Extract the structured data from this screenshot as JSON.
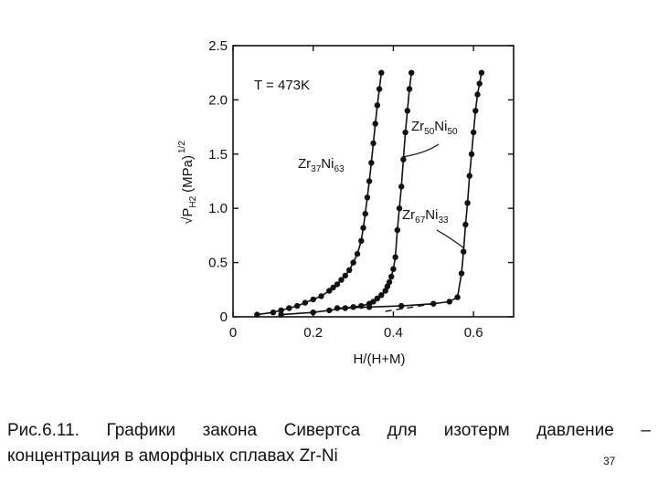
{
  "chart_data": {
    "type": "line",
    "xlabel": "H/(H+M)",
    "ylabel": "√P",
    "ylabel_sub": "H2",
    "ylabel_units": "(MPa)",
    "ylabel_exp": "1/2",
    "xlim": [
      0,
      0.7
    ],
    "ylim": [
      0,
      2.5
    ],
    "x_ticks": [
      {
        "value": 0,
        "label": "0"
      },
      {
        "value": 0.2,
        "label": "0.2"
      },
      {
        "value": 0.4,
        "label": "0.4"
      },
      {
        "value": 0.6,
        "label": "0.6"
      }
    ],
    "y_ticks": [
      {
        "value": 0,
        "label": "0"
      },
      {
        "value": 0.5,
        "label": "0.5"
      },
      {
        "value": 1.0,
        "label": "1.0"
      },
      {
        "value": 1.5,
        "label": "1.5"
      },
      {
        "value": 2.0,
        "label": "2.0"
      },
      {
        "value": 2.5,
        "label": "2.5"
      }
    ],
    "annotation_temperature": "T = 473K",
    "series": [
      {
        "name": "Zr37Ni63",
        "label_main": "Zr",
        "label_sub1": "37",
        "label_mid": "Ni",
        "label_sub2": "63",
        "points": [
          [
            0.06,
            0.02
          ],
          [
            0.1,
            0.04
          ],
          [
            0.12,
            0.06
          ],
          [
            0.14,
            0.08
          ],
          [
            0.16,
            0.1
          ],
          [
            0.18,
            0.13
          ],
          [
            0.2,
            0.16
          ],
          [
            0.22,
            0.19
          ],
          [
            0.24,
            0.24
          ],
          [
            0.25,
            0.27
          ],
          [
            0.26,
            0.3
          ],
          [
            0.27,
            0.34
          ],
          [
            0.28,
            0.38
          ],
          [
            0.29,
            0.43
          ],
          [
            0.3,
            0.5
          ],
          [
            0.31,
            0.58
          ],
          [
            0.32,
            0.7
          ],
          [
            0.325,
            0.82
          ],
          [
            0.33,
            0.95
          ],
          [
            0.335,
            1.1
          ],
          [
            0.34,
            1.25
          ],
          [
            0.345,
            1.42
          ],
          [
            0.35,
            1.6
          ],
          [
            0.355,
            1.78
          ],
          [
            0.36,
            1.95
          ],
          [
            0.365,
            2.1
          ],
          [
            0.37,
            2.25
          ]
        ]
      },
      {
        "name": "Zr50Ni50",
        "label_main": "Zr",
        "label_sub1": "50",
        "label_mid": "Ni",
        "label_sub2": "50",
        "points": [
          [
            0.12,
            0.02
          ],
          [
            0.2,
            0.04
          ],
          [
            0.24,
            0.06
          ],
          [
            0.28,
            0.08
          ],
          [
            0.3,
            0.09
          ],
          [
            0.32,
            0.1
          ],
          [
            0.34,
            0.12
          ],
          [
            0.35,
            0.14
          ],
          [
            0.36,
            0.17
          ],
          [
            0.37,
            0.2
          ],
          [
            0.38,
            0.24
          ],
          [
            0.385,
            0.28
          ],
          [
            0.39,
            0.32
          ],
          [
            0.395,
            0.37
          ],
          [
            0.4,
            0.44
          ],
          [
            0.405,
            0.55
          ],
          [
            0.41,
            0.8
          ],
          [
            0.415,
            1.0
          ],
          [
            0.42,
            1.2
          ],
          [
            0.425,
            1.45
          ],
          [
            0.43,
            1.7
          ],
          [
            0.435,
            1.9
          ],
          [
            0.44,
            2.1
          ],
          [
            0.445,
            2.25
          ]
        ]
      },
      {
        "name": "Zr67Ni33",
        "label_main": "Zr",
        "label_sub1": "67",
        "label_mid": "Ni",
        "label_sub2": "33",
        "points": [
          [
            0.26,
            0.08
          ],
          [
            0.34,
            0.09
          ],
          [
            0.42,
            0.1
          ],
          [
            0.5,
            0.12
          ],
          [
            0.54,
            0.14
          ],
          [
            0.56,
            0.18
          ],
          [
            0.57,
            0.4
          ],
          [
            0.575,
            0.6
          ],
          [
            0.58,
            0.85
          ],
          [
            0.585,
            1.05
          ],
          [
            0.59,
            1.3
          ],
          [
            0.595,
            1.5
          ],
          [
            0.6,
            1.7
          ],
          [
            0.605,
            1.9
          ],
          [
            0.61,
            2.05
          ],
          [
            0.615,
            2.15
          ],
          [
            0.62,
            2.25
          ]
        ]
      }
    ]
  },
  "caption": {
    "line1": "Рис.6.11. Графики закона Сивертса для изотерм давление –",
    "line2": "концентрация в аморфных сплавах Zr-Ni",
    "page_number": "37"
  }
}
